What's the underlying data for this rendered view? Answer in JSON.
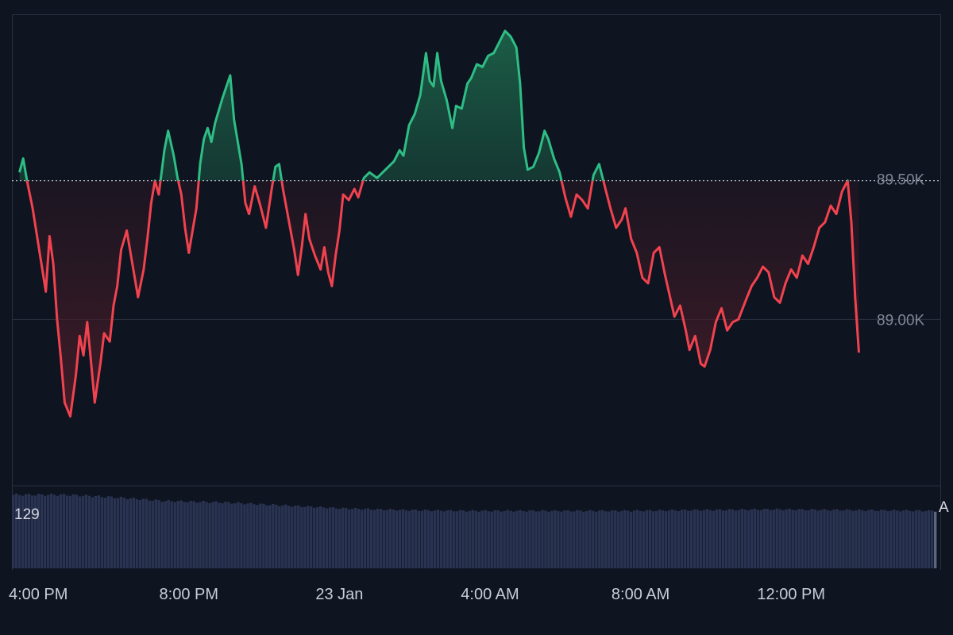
{
  "colors": {
    "background": "#0e1420",
    "up": "#2ebd85",
    "down": "#f0434f",
    "grid": "#2a3140",
    "volume": "#2a3452",
    "baseline": "#b7bcc7"
  },
  "chart_data": {
    "type": "area",
    "style": "baseline",
    "baseline": 89500,
    "ylim": [
      88400,
      90100
    ],
    "y_ticks": [
      {
        "value": 89500,
        "label": "89.50K"
      },
      {
        "value": 89000,
        "label": "89.00K"
      }
    ],
    "x_ticks": [
      {
        "t": 0.5,
        "label": "4:00 PM"
      },
      {
        "t": 4.5,
        "label": "8:00 PM"
      },
      {
        "t": 8.5,
        "label": "23 Jan"
      },
      {
        "t": 12.5,
        "label": "4:00 AM"
      },
      {
        "t": 16.5,
        "label": "8:00 AM"
      },
      {
        "t": 20.5,
        "label": "12:00 PM"
      }
    ],
    "price_points": [
      [
        0.0,
        89530
      ],
      [
        0.1,
        89580
      ],
      [
        0.2,
        89500
      ],
      [
        0.35,
        89400
      ],
      [
        0.55,
        89230
      ],
      [
        0.7,
        89100
      ],
      [
        0.8,
        89300
      ],
      [
        0.9,
        89200
      ],
      [
        1.0,
        89000
      ],
      [
        1.1,
        88860
      ],
      [
        1.2,
        88700
      ],
      [
        1.35,
        88650
      ],
      [
        1.5,
        88800
      ],
      [
        1.6,
        88940
      ],
      [
        1.7,
        88870
      ],
      [
        1.8,
        88990
      ],
      [
        1.9,
        88850
      ],
      [
        2.0,
        88700
      ],
      [
        2.15,
        88840
      ],
      [
        2.25,
        88950
      ],
      [
        2.4,
        88920
      ],
      [
        2.5,
        89050
      ],
      [
        2.6,
        89120
      ],
      [
        2.7,
        89250
      ],
      [
        2.85,
        89320
      ],
      [
        3.0,
        89200
      ],
      [
        3.15,
        89080
      ],
      [
        3.3,
        89180
      ],
      [
        3.4,
        89290
      ],
      [
        3.5,
        89420
      ],
      [
        3.6,
        89500
      ],
      [
        3.7,
        89450
      ],
      [
        3.85,
        89610
      ],
      [
        3.95,
        89680
      ],
      [
        4.1,
        89590
      ],
      [
        4.2,
        89510
      ],
      [
        4.3,
        89450
      ],
      [
        4.4,
        89330
      ],
      [
        4.5,
        89240
      ],
      [
        4.6,
        89320
      ],
      [
        4.7,
        89400
      ],
      [
        4.8,
        89560
      ],
      [
        4.9,
        89650
      ],
      [
        5.0,
        89690
      ],
      [
        5.1,
        89640
      ],
      [
        5.2,
        89710
      ],
      [
        5.4,
        89800
      ],
      [
        5.6,
        89880
      ],
      [
        5.7,
        89720
      ],
      [
        5.9,
        89560
      ],
      [
        6.0,
        89420
      ],
      [
        6.1,
        89380
      ],
      [
        6.25,
        89480
      ],
      [
        6.4,
        89410
      ],
      [
        6.55,
        89330
      ],
      [
        6.7,
        89470
      ],
      [
        6.8,
        89550
      ],
      [
        6.9,
        89560
      ],
      [
        7.0,
        89470
      ],
      [
        7.15,
        89360
      ],
      [
        7.3,
        89250
      ],
      [
        7.4,
        89160
      ],
      [
        7.5,
        89260
      ],
      [
        7.6,
        89380
      ],
      [
        7.7,
        89290
      ],
      [
        7.85,
        89230
      ],
      [
        8.0,
        89180
      ],
      [
        8.1,
        89260
      ],
      [
        8.2,
        89170
      ],
      [
        8.3,
        89120
      ],
      [
        8.4,
        89230
      ],
      [
        8.5,
        89320
      ],
      [
        8.6,
        89450
      ],
      [
        8.75,
        89430
      ],
      [
        8.9,
        89470
      ],
      [
        9.0,
        89440
      ],
      [
        9.15,
        89510
      ],
      [
        9.3,
        89530
      ],
      [
        9.5,
        89510
      ],
      [
        9.65,
        89530
      ],
      [
        9.8,
        89550
      ],
      [
        9.95,
        89570
      ],
      [
        10.1,
        89610
      ],
      [
        10.2,
        89590
      ],
      [
        10.35,
        89700
      ],
      [
        10.5,
        89740
      ],
      [
        10.65,
        89810
      ],
      [
        10.8,
        89960
      ],
      [
        10.9,
        89860
      ],
      [
        11.0,
        89840
      ],
      [
        11.1,
        89960
      ],
      [
        11.2,
        89860
      ],
      [
        11.35,
        89790
      ],
      [
        11.5,
        89690
      ],
      [
        11.6,
        89770
      ],
      [
        11.75,
        89760
      ],
      [
        11.9,
        89850
      ],
      [
        12.0,
        89870
      ],
      [
        12.15,
        89920
      ],
      [
        12.3,
        89910
      ],
      [
        12.45,
        89950
      ],
      [
        12.6,
        89960
      ],
      [
        12.75,
        90000
      ],
      [
        12.9,
        90040
      ],
      [
        13.05,
        90020
      ],
      [
        13.2,
        89980
      ],
      [
        13.3,
        89850
      ],
      [
        13.4,
        89620
      ],
      [
        13.5,
        89540
      ],
      [
        13.65,
        89550
      ],
      [
        13.8,
        89600
      ],
      [
        13.95,
        89680
      ],
      [
        14.05,
        89650
      ],
      [
        14.2,
        89580
      ],
      [
        14.35,
        89530
      ],
      [
        14.5,
        89440
      ],
      [
        14.65,
        89370
      ],
      [
        14.8,
        89450
      ],
      [
        14.95,
        89430
      ],
      [
        15.1,
        89400
      ],
      [
        15.25,
        89520
      ],
      [
        15.4,
        89560
      ],
      [
        15.55,
        89480
      ],
      [
        15.7,
        89400
      ],
      [
        15.85,
        89330
      ],
      [
        16.0,
        89360
      ],
      [
        16.1,
        89400
      ],
      [
        16.25,
        89290
      ],
      [
        16.4,
        89240
      ],
      [
        16.55,
        89150
      ],
      [
        16.7,
        89130
      ],
      [
        16.85,
        89240
      ],
      [
        17.0,
        89260
      ],
      [
        17.15,
        89160
      ],
      [
        17.3,
        89070
      ],
      [
        17.4,
        89010
      ],
      [
        17.55,
        89050
      ],
      [
        17.7,
        88960
      ],
      [
        17.8,
        88890
      ],
      [
        17.95,
        88940
      ],
      [
        18.1,
        88840
      ],
      [
        18.2,
        88830
      ],
      [
        18.35,
        88890
      ],
      [
        18.5,
        88990
      ],
      [
        18.65,
        89040
      ],
      [
        18.8,
        88960
      ],
      [
        18.95,
        88990
      ],
      [
        19.1,
        89000
      ],
      [
        19.3,
        89070
      ],
      [
        19.45,
        89120
      ],
      [
        19.6,
        89150
      ],
      [
        19.75,
        89190
      ],
      [
        19.9,
        89170
      ],
      [
        20.05,
        89080
      ],
      [
        20.2,
        89060
      ],
      [
        20.35,
        89130
      ],
      [
        20.5,
        89180
      ],
      [
        20.65,
        89150
      ],
      [
        20.8,
        89230
      ],
      [
        20.95,
        89200
      ],
      [
        21.1,
        89260
      ],
      [
        21.25,
        89330
      ],
      [
        21.4,
        89350
      ],
      [
        21.55,
        89410
      ],
      [
        21.7,
        89380
      ],
      [
        21.85,
        89460
      ],
      [
        22.0,
        89500
      ],
      [
        22.1,
        89350
      ],
      [
        22.2,
        89080
      ],
      [
        22.3,
        88880
      ]
    ],
    "price_t_range": [
      -0.2,
      22.3
    ],
    "volume_t_range": [
      -0.2,
      22.5
    ],
    "volume_shape": [
      [
        0,
        0.96
      ],
      [
        1.0,
        0.96
      ],
      [
        1.5,
        0.95
      ],
      [
        2.5,
        0.92
      ],
      [
        3.5,
        0.88
      ],
      [
        5.0,
        0.86
      ],
      [
        6.5,
        0.82
      ],
      [
        8.0,
        0.78
      ],
      [
        9.5,
        0.76
      ],
      [
        11.0,
        0.75
      ],
      [
        13.0,
        0.75
      ],
      [
        15.0,
        0.75
      ],
      [
        16.5,
        0.76
      ],
      [
        18.5,
        0.77
      ],
      [
        20.5,
        0.76
      ],
      [
        22.5,
        0.75
      ]
    ],
    "volume_label": "129",
    "end_label": "A"
  }
}
